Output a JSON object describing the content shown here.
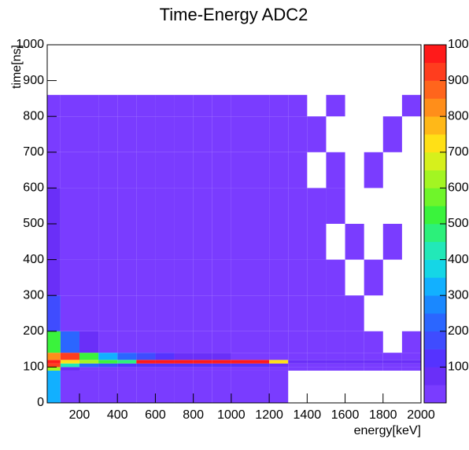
{
  "chart_data": {
    "type": "heatmap",
    "title": "Time-Energy ADC2",
    "x_label": "energy[keV]",
    "y_label": "time[ns]",
    "xbins": [
      30,
      100,
      200,
      300,
      400,
      500,
      600,
      700,
      800,
      900,
      1000,
      1100,
      1200,
      1300,
      1400,
      1500,
      1600,
      1700,
      1800,
      1900,
      2000
    ],
    "ybins": [
      0,
      90,
      100,
      110,
      120,
      140,
      200,
      300,
      400,
      500,
      600,
      700,
      800,
      860
    ],
    "z": [
      [
        300,
        5,
        2,
        1,
        1,
        1,
        1,
        1,
        1,
        1,
        1,
        1,
        1,
        0,
        0,
        0,
        0,
        0,
        0,
        0
      ],
      [
        600,
        50,
        20,
        15,
        10,
        10,
        10,
        10,
        10,
        10,
        10,
        10,
        8,
        5,
        3,
        3,
        3,
        3,
        3,
        3
      ],
      [
        900,
        400,
        200,
        150,
        120,
        100,
        100,
        100,
        100,
        100,
        100,
        100,
        80,
        30,
        30,
        30,
        30,
        30,
        30,
        30
      ],
      [
        1000,
        700,
        600,
        500,
        450,
        950,
        950,
        950,
        950,
        950,
        950,
        950,
        700,
        60,
        60,
        60,
        60,
        60,
        60,
        60
      ],
      [
        800,
        900,
        500,
        300,
        200,
        150,
        100,
        80,
        60,
        50,
        40,
        40,
        30,
        3,
        2,
        2,
        2,
        1,
        1,
        1
      ],
      [
        500,
        200,
        60,
        30,
        20,
        15,
        12,
        10,
        10,
        8,
        8,
        8,
        6,
        1,
        1,
        1,
        1,
        1,
        0,
        1
      ],
      [
        150,
        40,
        20,
        15,
        12,
        10,
        8,
        8,
        6,
        6,
        5,
        5,
        4,
        1,
        1,
        1,
        1,
        0,
        0,
        0
      ],
      [
        80,
        25,
        15,
        12,
        10,
        8,
        7,
        6,
        6,
        5,
        5,
        4,
        4,
        1,
        1,
        1,
        0,
        1,
        0,
        0
      ],
      [
        60,
        22,
        14,
        11,
        9,
        8,
        7,
        6,
        5,
        5,
        4,
        4,
        4,
        1,
        1,
        0,
        1,
        0,
        1,
        0
      ],
      [
        50,
        20,
        13,
        10,
        9,
        7,
        6,
        6,
        5,
        4,
        4,
        4,
        3,
        1,
        1,
        1,
        0,
        0,
        0,
        0
      ],
      [
        45,
        18,
        12,
        10,
        8,
        7,
        6,
        5,
        5,
        4,
        4,
        3,
        3,
        1,
        0,
        1,
        0,
        1,
        0,
        0
      ],
      [
        40,
        16,
        11,
        9,
        8,
        6,
        6,
        5,
        4,
        4,
        3,
        3,
        3,
        1,
        1,
        0,
        0,
        0,
        1,
        0
      ],
      [
        35,
        15,
        10,
        8,
        7,
        6,
        5,
        5,
        4,
        4,
        3,
        3,
        3,
        1,
        0,
        1,
        0,
        0,
        0,
        1
      ]
    ],
    "xlim": [
      30,
      2000
    ],
    "ylim": [
      0,
      1000
    ],
    "zlim": [
      0,
      1000
    ],
    "xticks": [
      200,
      400,
      600,
      800,
      1000,
      1200,
      1400,
      1600,
      1800,
      2000
    ],
    "yticks": [
      0,
      100,
      200,
      300,
      400,
      500,
      600,
      700,
      800,
      900,
      1000
    ],
    "zticks": [
      100,
      200,
      300,
      400,
      500,
      600,
      700,
      800,
      900,
      1000
    ],
    "palette": [
      "#7a3cff",
      "#6a2ff8",
      "#5533ff",
      "#3f4cff",
      "#2b66ff",
      "#1a88ff",
      "#12b0ff",
      "#15d6e6",
      "#22e8b8",
      "#2cf07a",
      "#3af33c",
      "#6ff52a",
      "#a3f522",
      "#d6f01c",
      "#ffe016",
      "#ffb818",
      "#ff8e1a",
      "#ff651c",
      "#ff3d1e",
      "#ff1a1a"
    ]
  }
}
